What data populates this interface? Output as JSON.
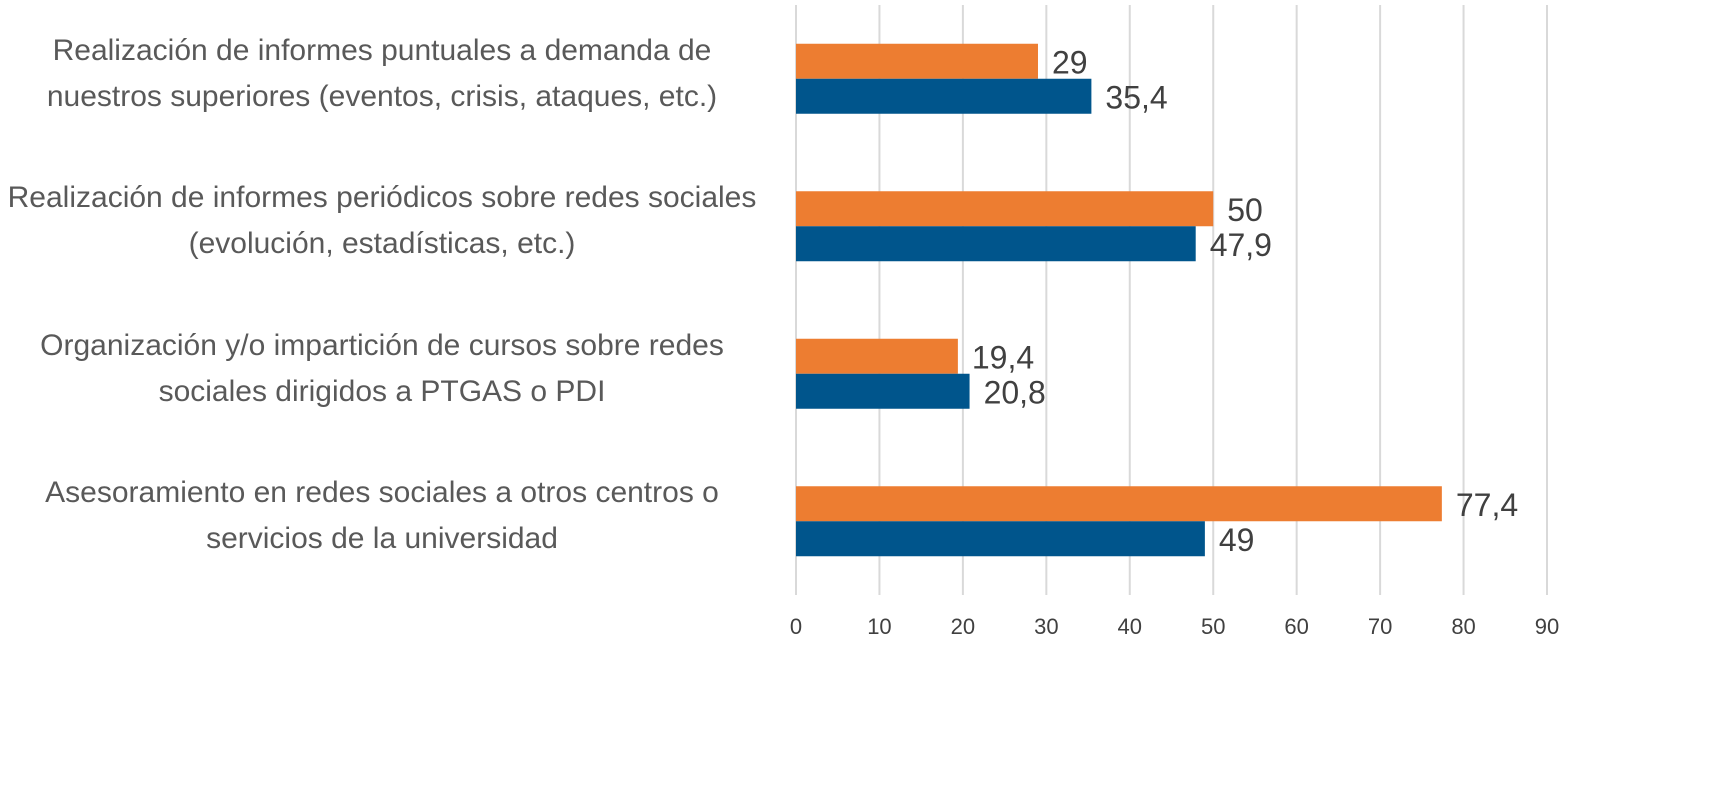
{
  "chart_data": {
    "type": "barh",
    "categories": [
      "Realización de informes puntuales a demanda de nuestros superiores (eventos, crisis, ataques, etc.)",
      "Realización de informes periódicos sobre redes sociales (evolución, estadísticas, etc.)",
      "Organización y/o impartición de cursos sobre redes sociales dirigidos a PTGAS o PDI",
      "Asesoramiento en redes sociales a otros centros o servicios de la universidad"
    ],
    "series": [
      {
        "color": "#ed7d31",
        "values": [
          29,
          50,
          19.4,
          77.4
        ],
        "value_labels": [
          "29",
          "50",
          "19,4",
          "77,4"
        ]
      },
      {
        "color": "#00558c",
        "values": [
          35.4,
          47.9,
          20.8,
          49
        ],
        "value_labels": [
          "35,4",
          "47,9",
          "20,8",
          "49"
        ]
      }
    ],
    "xlim": [
      0,
      90
    ],
    "xticks": [
      0,
      10,
      20,
      30,
      40,
      50,
      60,
      70,
      80,
      90
    ],
    "grid": true
  }
}
